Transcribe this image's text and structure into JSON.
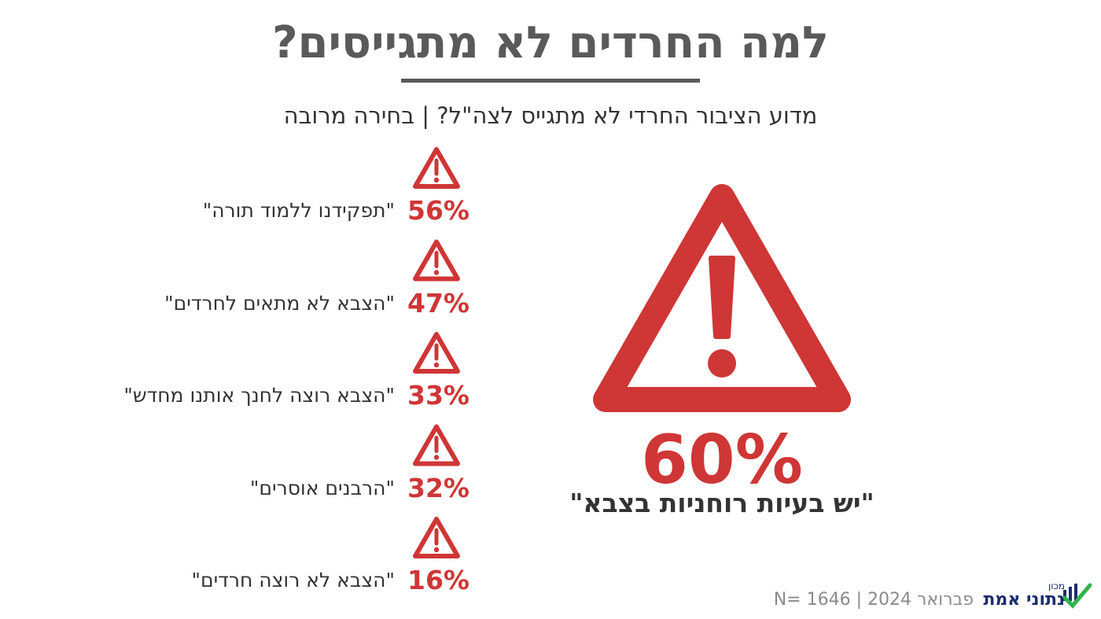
{
  "header": {
    "title": "למה החרדים לא מתגייסים?",
    "subtitle": "מדוע הציבור החרדי לא מתגייס לצה\"ל? | בחירה מרובה"
  },
  "items": [
    {
      "percent": "56%",
      "label": "\"תפקידנו ללמוד תורה\""
    },
    {
      "percent": "47%",
      "label": "\"הצבא לא מתאים לחרדים\""
    },
    {
      "percent": "33%",
      "label": "\"הצבא רוצה לחנך אותנו מחדש\""
    },
    {
      "percent": "32%",
      "label": "\"הרבנים אוסרים\""
    },
    {
      "percent": "16%",
      "label": "\"הצבא לא רוצה חרדים\""
    }
  ],
  "featured": {
    "percent": "60%",
    "label": "\"יש בעיות רוחניות בצבא\""
  },
  "footer": {
    "note": "פברואר 2024 | N= 1646",
    "logo_small": "מכון",
    "logo_main": "נתוני אמת"
  }
}
